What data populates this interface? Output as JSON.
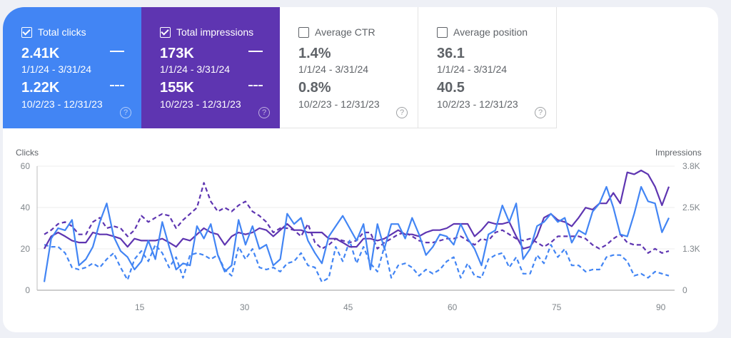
{
  "metrics": [
    {
      "label": "Total clicks",
      "checked": true,
      "current": "2.41K",
      "current_range": "1/1/24 - 3/31/24",
      "previous": "1.22K",
      "previous_range": "10/2/23 - 12/31/23",
      "color": "#4285f4"
    },
    {
      "label": "Total impressions",
      "checked": true,
      "current": "173K",
      "current_range": "1/1/24 - 3/31/24",
      "previous": "155K",
      "previous_range": "10/2/23 - 12/31/23",
      "color": "#5e35b1"
    },
    {
      "label": "Average CTR",
      "checked": false,
      "current": "1.4%",
      "current_range": "1/1/24 - 3/31/24",
      "previous": "0.8%",
      "previous_range": "10/2/23 - 12/31/23"
    },
    {
      "label": "Average position",
      "checked": false,
      "current": "36.1",
      "current_range": "1/1/24 - 3/31/24",
      "previous": "40.5",
      "previous_range": "10/2/23 - 12/31/23"
    }
  ],
  "help_glyph": "?",
  "chart_data": {
    "type": "line",
    "ylabel": "Clicks",
    "y2label": "Impressions",
    "ylim": [
      0,
      60
    ],
    "y2lim": [
      0,
      3800
    ],
    "yticks": [
      "0",
      "20",
      "40",
      "60"
    ],
    "y2ticks": [
      "0",
      "1.3K",
      "2.5K",
      "3.8K"
    ],
    "xticks": [
      "15",
      "30",
      "45",
      "60",
      "75",
      "90"
    ],
    "grid": true,
    "series": [
      {
        "metric": "clicks",
        "period": "current",
        "style": "solid",
        "color": "#4285f4",
        "axis": "left",
        "values": [
          4,
          25,
          30,
          29,
          34,
          12,
          15,
          21,
          33,
          42,
          26,
          19,
          16,
          10,
          14,
          24,
          15,
          33,
          21,
          10,
          13,
          12,
          31,
          25,
          32,
          17,
          9,
          12,
          34,
          22,
          31,
          20,
          22,
          12,
          15,
          37,
          32,
          35,
          24,
          18,
          13,
          26,
          31,
          36,
          30,
          24,
          32,
          10,
          32,
          20,
          32,
          32,
          25,
          35,
          27,
          17,
          21,
          27,
          26,
          22,
          32,
          25,
          20,
          12,
          27,
          29,
          41,
          33,
          42,
          15,
          20,
          31,
          33,
          37,
          33,
          35,
          23,
          29,
          27,
          38,
          42,
          50,
          40,
          27,
          26,
          37,
          50,
          43,
          42,
          28,
          35
        ]
      },
      {
        "metric": "clicks",
        "period": "previous",
        "style": "dashed",
        "color": "#4285f4",
        "axis": "left",
        "values": [
          22,
          21,
          21,
          18,
          11,
          10,
          11,
          13,
          11,
          15,
          18,
          11,
          5,
          15,
          19,
          14,
          22,
          18,
          11,
          16,
          6,
          17,
          18,
          17,
          15,
          17,
          10,
          7,
          21,
          15,
          20,
          11,
          10,
          11,
          9,
          13,
          14,
          18,
          12,
          11,
          4,
          6,
          21,
          14,
          24,
          13,
          21,
          13,
          9,
          21,
          6,
          12,
          13,
          11,
          7,
          10,
          8,
          10,
          14,
          16,
          6,
          13,
          7,
          6,
          15,
          17,
          18,
          11,
          16,
          8,
          8,
          17,
          13,
          22,
          16,
          20,
          12,
          12,
          9,
          10,
          10,
          16,
          17,
          17,
          14,
          7,
          8,
          6,
          9,
          8,
          7
        ]
      },
      {
        "metric": "impressions",
        "period": "current",
        "style": "solid",
        "color": "#5e35b1",
        "axis": "right",
        "values": [
          1270,
          1650,
          1770,
          1650,
          1520,
          1460,
          1460,
          1770,
          1710,
          1710,
          1650,
          1580,
          1330,
          1580,
          1520,
          1520,
          1520,
          1580,
          1460,
          1330,
          1580,
          1520,
          1710,
          1900,
          1770,
          1710,
          1390,
          1650,
          1770,
          1710,
          1770,
          1900,
          1840,
          1650,
          1840,
          2030,
          1840,
          1840,
          1770,
          1770,
          1770,
          1580,
          1580,
          1460,
          1330,
          1330,
          1580,
          1580,
          1520,
          1580,
          1710,
          1840,
          1710,
          1710,
          1650,
          1770,
          1840,
          1840,
          1900,
          2030,
          2030,
          2030,
          1650,
          1840,
          2090,
          2030,
          2030,
          2090,
          1650,
          1270,
          1330,
          1650,
          2220,
          2340,
          2150,
          2090,
          1960,
          2220,
          2530,
          2470,
          2660,
          2660,
          2980,
          2660,
          3610,
          3550,
          3670,
          3550,
          3170,
          2600,
          3170
        ]
      },
      {
        "metric": "impressions",
        "period": "previous",
        "style": "dashed",
        "color": "#5e35b1",
        "axis": "right",
        "values": [
          1710,
          1840,
          2030,
          2090,
          1960,
          1710,
          1710,
          2090,
          2220,
          1900,
          1960,
          1900,
          1650,
          1840,
          2280,
          2090,
          2220,
          2340,
          2280,
          1900,
          2150,
          2340,
          2530,
          3290,
          2720,
          2410,
          2530,
          2410,
          2600,
          2720,
          2410,
          2280,
          2090,
          1770,
          1900,
          1900,
          1840,
          1650,
          2030,
          1460,
          1270,
          1390,
          1580,
          1520,
          1460,
          1520,
          1770,
          1770,
          1270,
          1460,
          1580,
          1710,
          1770,
          1650,
          1520,
          1460,
          1460,
          1520,
          1580,
          1580,
          1650,
          1520,
          1390,
          1580,
          1520,
          1770,
          1840,
          1710,
          1580,
          1520,
          1580,
          1460,
          1330,
          1460,
          1650,
          1650,
          1650,
          1650,
          1580,
          1390,
          1270,
          1390,
          1580,
          1710,
          1460,
          1390,
          1390,
          1140,
          1270,
          1140,
          1200
        ]
      }
    ]
  }
}
